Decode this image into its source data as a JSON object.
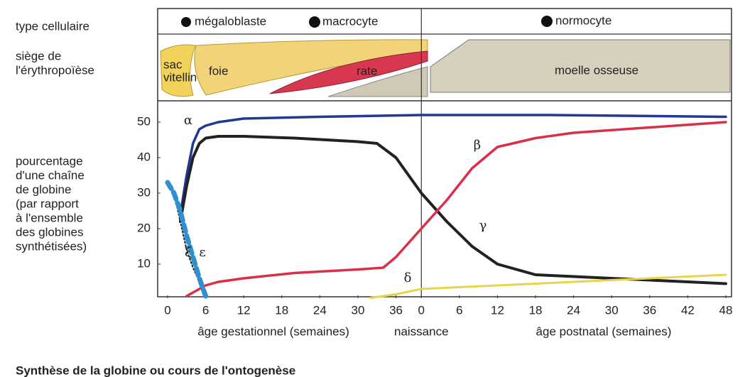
{
  "chart_data": {
    "type": "line",
    "title": "Synthèse de la globine ou cours de l'ontogenèse",
    "row_labels": {
      "cell_type": "type cellulaire",
      "site": [
        "siège de",
        "l'érythropoïèse"
      ]
    },
    "cell_types": [
      "mégaloblaste",
      "macrocyte",
      "normocyte"
    ],
    "sites": {
      "yolk_sac": [
        "sac",
        "vitellin"
      ],
      "liver": "foie",
      "spleen": "rate",
      "marrow": "moelle osseuse"
    },
    "ylabel": [
      "pourcentage",
      "d'une chaîne",
      "de globine",
      "(par rapport",
      "à l'ensemble",
      "des globines",
      "synthétisées)"
    ],
    "xlabels": [
      "âge gestationnel (semaines)",
      "âge postnatal (semaines)"
    ],
    "annotations": [
      {
        "text": "naissance",
        "x": 40
      }
    ],
    "xlim": [
      0,
      88
    ],
    "ylim": [
      0,
      55
    ],
    "xticks": [
      0,
      6,
      12,
      18,
      24,
      30,
      36,
      {
        "value": 40,
        "label": "0"
      },
      {
        "value": 46,
        "label": "6"
      },
      {
        "value": 52,
        "label": "12"
      },
      {
        "value": 58,
        "label": "18"
      },
      {
        "value": 64,
        "label": "24"
      },
      {
        "value": 70,
        "label": "30"
      },
      {
        "value": 76,
        "label": "36"
      },
      {
        "value": 82,
        "label": "42"
      },
      {
        "value": 88,
        "label": "48"
      }
    ],
    "yticks": [
      10,
      20,
      30,
      40,
      50
    ],
    "series": [
      {
        "name": "α",
        "color": "#1f3a93",
        "x": [
          2,
          3,
          4,
          5,
          6,
          8,
          12,
          24,
          40,
          60,
          88
        ],
        "values": [
          24,
          35,
          44,
          48,
          49,
          50,
          51,
          51.5,
          52,
          52,
          51.5
        ]
      },
      {
        "name": "γ",
        "color": "#222222",
        "x": [
          2,
          3,
          4,
          5,
          6,
          8,
          12,
          20,
          30,
          33,
          36,
          40,
          44,
          48,
          52,
          58,
          64,
          76,
          88
        ],
        "values": [
          22,
          32,
          40,
          44,
          45.5,
          46,
          46,
          45.5,
          44.5,
          44,
          40,
          30,
          22,
          15,
          10,
          7,
          6.5,
          5.5,
          4.5
        ]
      },
      {
        "name": "β",
        "color": "#d9304a",
        "x": [
          3,
          4,
          6,
          8,
          12,
          20,
          30,
          34,
          36,
          40,
          44,
          48,
          52,
          58,
          64,
          76,
          88
        ],
        "values": [
          1,
          2,
          4,
          5,
          6,
          7.5,
          8.5,
          9,
          12,
          20,
          28,
          37,
          43,
          45.5,
          47,
          48.5,
          50
        ]
      },
      {
        "name": "δ",
        "color": "#e8d44a",
        "x": [
          32,
          36,
          40,
          52,
          64,
          76,
          88
        ],
        "values": [
          0.5,
          1.5,
          3,
          4,
          5,
          6,
          7
        ]
      },
      {
        "name": "ε",
        "color": "#222222",
        "x": [
          1,
          2,
          3,
          4,
          5,
          6
        ],
        "values": [
          30,
          22,
          14,
          9,
          5,
          1
        ]
      },
      {
        "name": "ξ",
        "color": "#2f8fd0",
        "x": [
          0,
          1,
          2,
          3,
          4,
          5,
          6
        ],
        "values": [
          33,
          30,
          25,
          18,
          12,
          6,
          1
        ]
      }
    ]
  }
}
